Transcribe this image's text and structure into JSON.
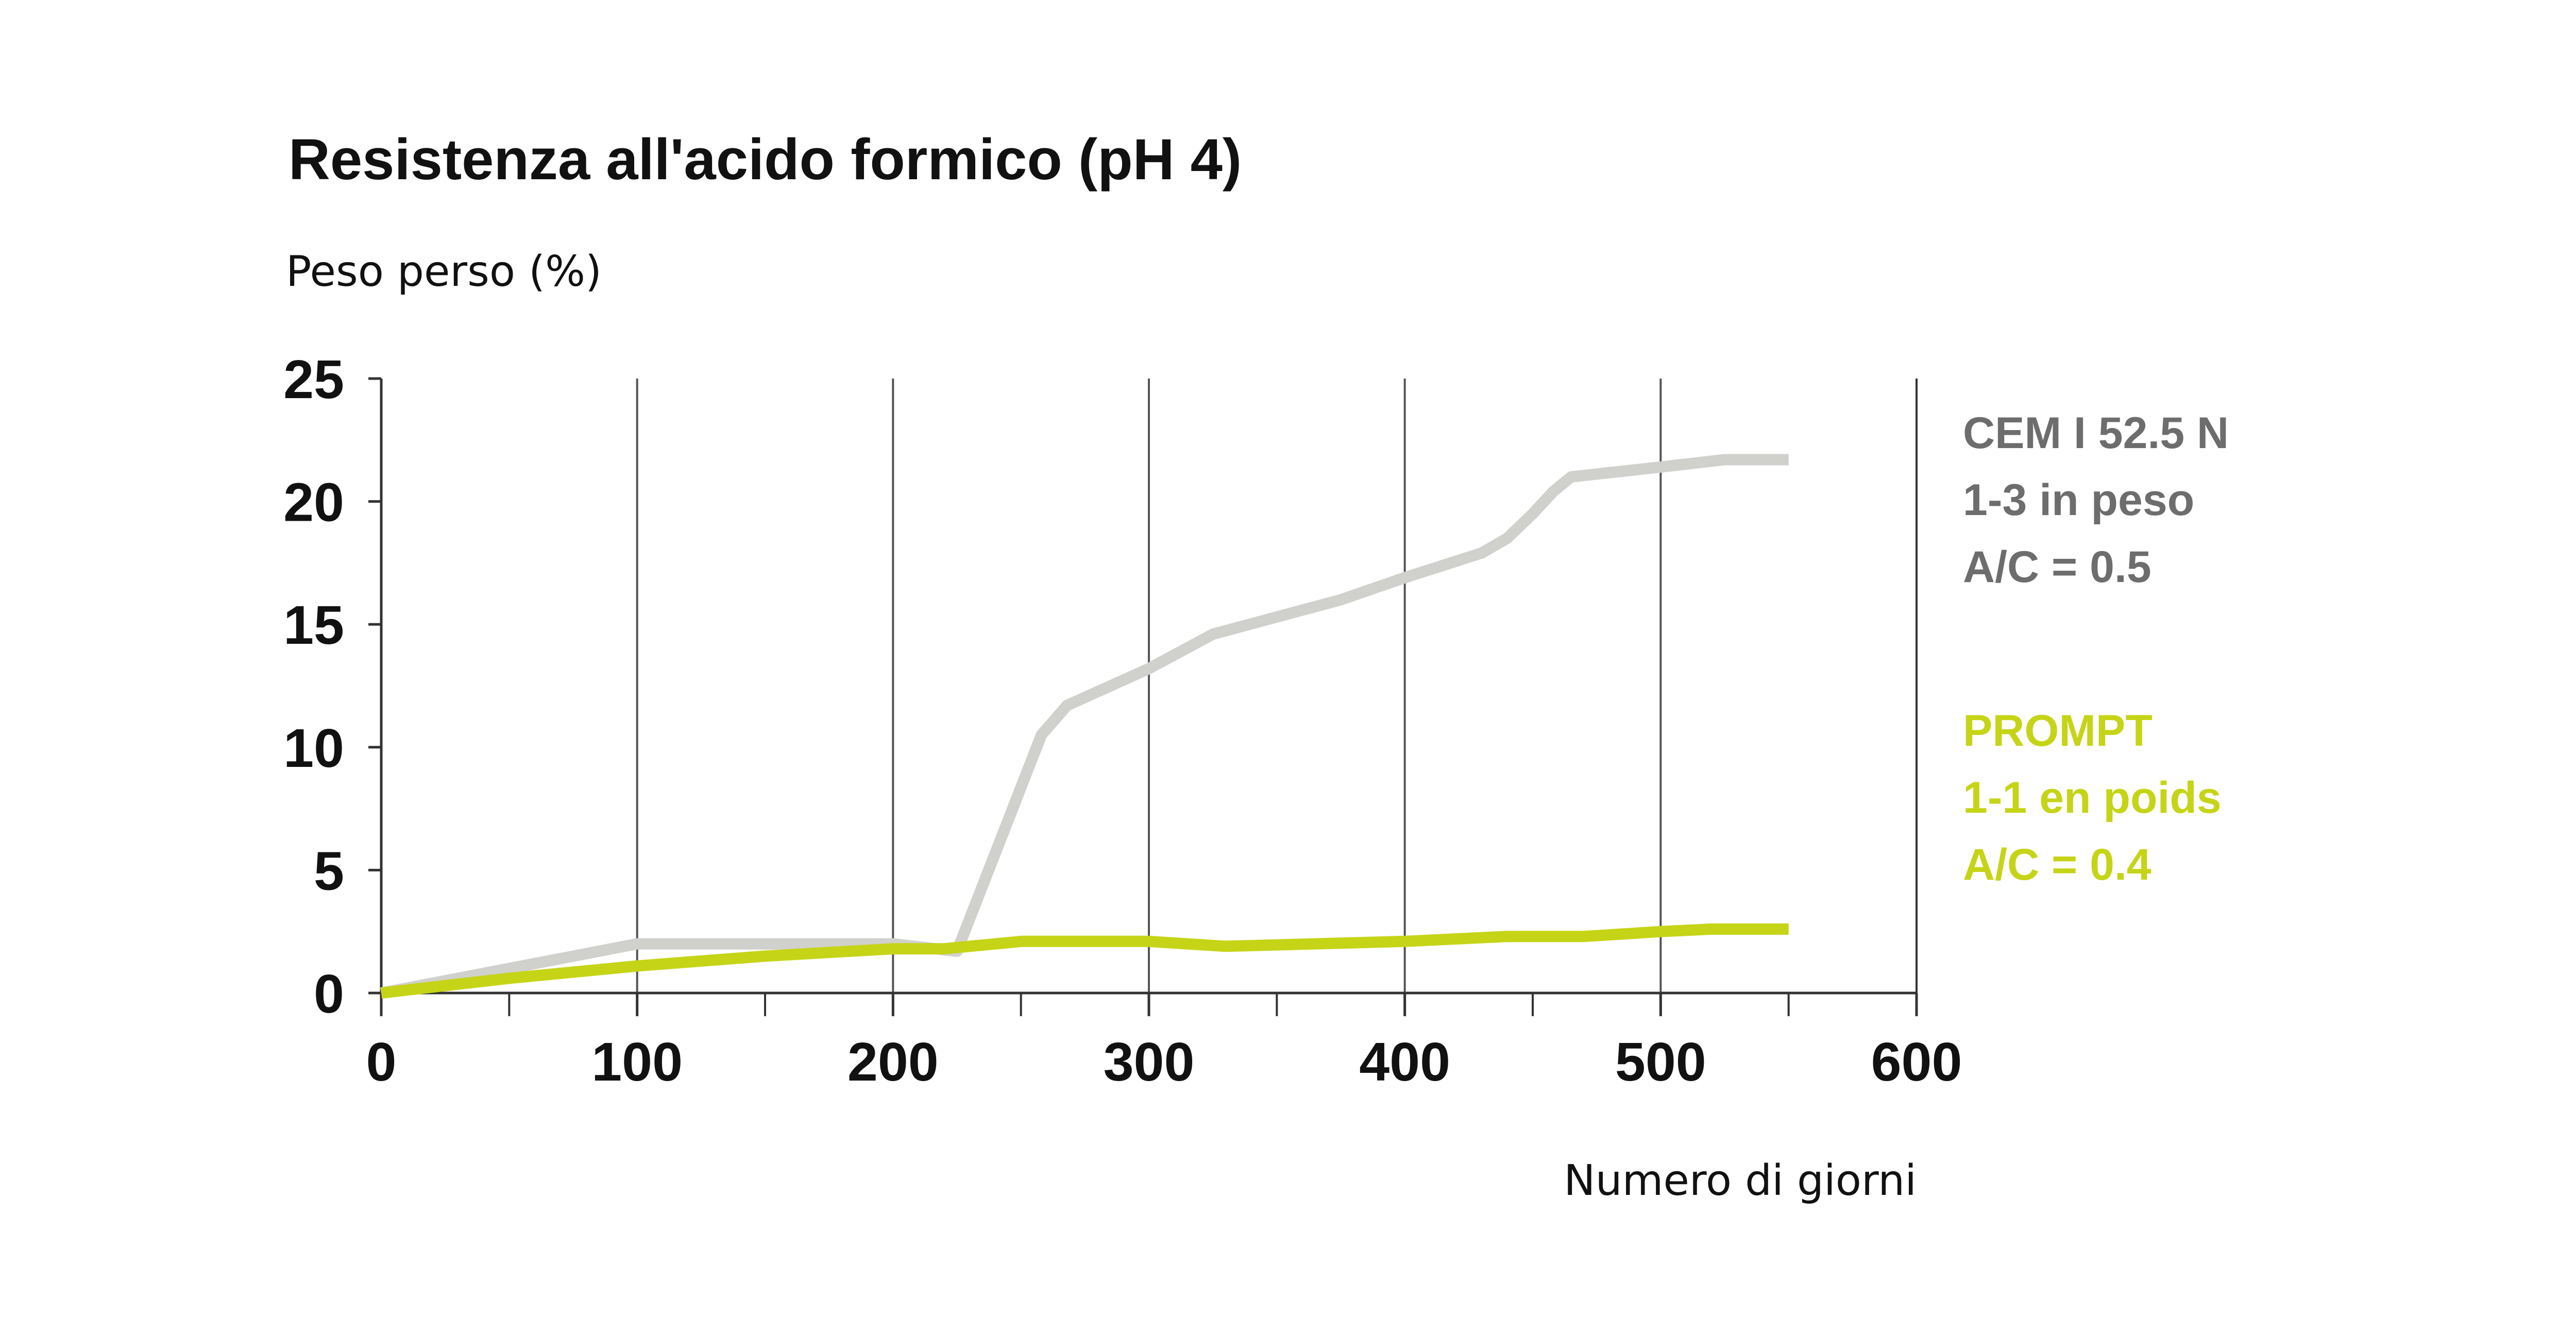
{
  "chart_data": {
    "type": "line",
    "title": "Resistenza all'acido formico (pH 4)",
    "ylabel": "Peso perso (%)",
    "xlabel": "Numero di giorni",
    "xlim": [
      0,
      600
    ],
    "ylim": [
      0,
      25
    ],
    "x_ticks": [
      0,
      100,
      200,
      300,
      400,
      500,
      600
    ],
    "y_ticks": [
      0,
      5,
      10,
      15,
      20,
      25
    ],
    "x_tick_labels": [
      "0",
      "100",
      "200",
      "300",
      "400",
      "500",
      "600"
    ],
    "y_tick_labels": [
      "0",
      "5",
      "10",
      "15",
      "20",
      "25"
    ],
    "x_gridlines": [
      100,
      200,
      300,
      400,
      500
    ],
    "x_minor_ticks": [
      50,
      150,
      250,
      350,
      450,
      550
    ],
    "legend_placement": "right",
    "series": [
      {
        "color": "#d0d0cc",
        "legend": [
          "CEM I 52.5 N",
          "1-3 in peso",
          "A/C = 0.5"
        ],
        "legend_color": "#6d6d6d",
        "points": [
          [
            0,
            0
          ],
          [
            100,
            2
          ],
          [
            200,
            2
          ],
          [
            225,
            1.7
          ],
          [
            258,
            10.5
          ],
          [
            268,
            11.7
          ],
          [
            300,
            13.2
          ],
          [
            325,
            14.6
          ],
          [
            350,
            15.3
          ],
          [
            375,
            16
          ],
          [
            400,
            16.9
          ],
          [
            430,
            17.9
          ],
          [
            440,
            18.5
          ],
          [
            450,
            19.5
          ],
          [
            458,
            20.4
          ],
          [
            465,
            21
          ],
          [
            500,
            21.4
          ],
          [
            525,
            21.7
          ],
          [
            550,
            21.7
          ]
        ]
      },
      {
        "color": "#c6d417",
        "legend": [
          "PROMPT",
          "1-1 en poids",
          "A/C = 0.4"
        ],
        "legend_color": "#c6d417",
        "points": [
          [
            0,
            0
          ],
          [
            50,
            0.6
          ],
          [
            100,
            1.1
          ],
          [
            150,
            1.5
          ],
          [
            200,
            1.8
          ],
          [
            220,
            1.8
          ],
          [
            250,
            2.1
          ],
          [
            300,
            2.1
          ],
          [
            330,
            1.9
          ],
          [
            400,
            2.1
          ],
          [
            440,
            2.3
          ],
          [
            470,
            2.3
          ],
          [
            500,
            2.5
          ],
          [
            520,
            2.6
          ],
          [
            550,
            2.6
          ]
        ]
      }
    ]
  }
}
